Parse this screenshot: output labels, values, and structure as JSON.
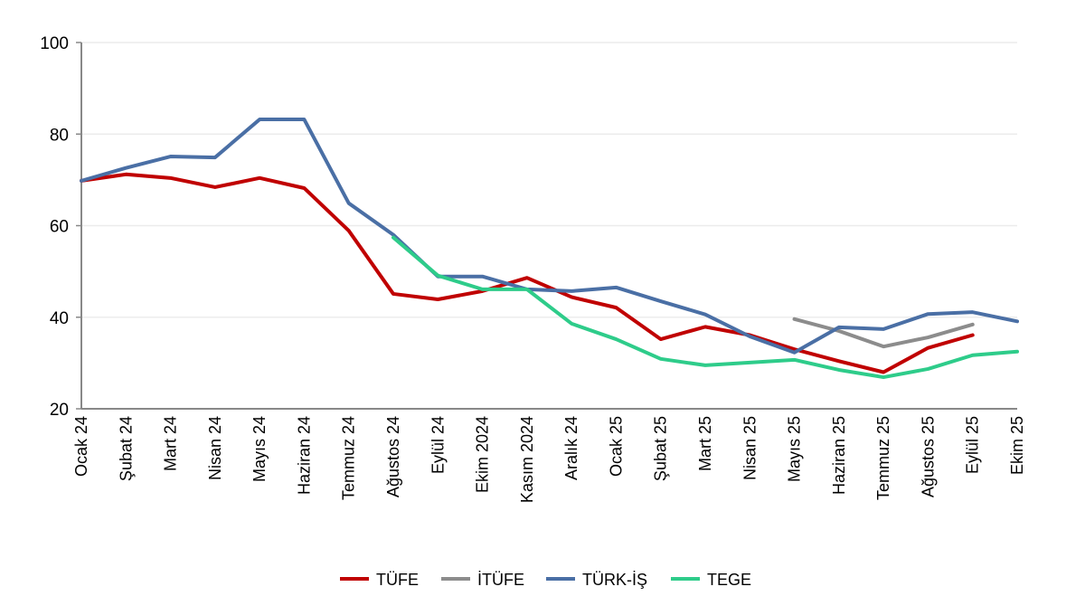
{
  "chart_data": {
    "type": "line",
    "title": "",
    "xlabel": "",
    "ylabel": "",
    "ylim": [
      20,
      100
    ],
    "yticks": [
      20,
      40,
      60,
      80,
      100
    ],
    "grid": true,
    "legend_position": "bottom",
    "categories": [
      "Ocak 24",
      "Şubat 24",
      "Mart 24",
      "Nisan 24",
      "Mayıs 24",
      "Haziran 24",
      "Temmuz 24",
      "Ağustos 24",
      "Eylül 24",
      "Ekim 2024",
      "Kasım 2024",
      "Aralık 24",
      "Ocak 25",
      "Şubat 25",
      "Mart 25",
      "Nisan 25",
      "Mayıs 25",
      "Haziran 25",
      "Temmuz 25",
      "Ağustos 25",
      "Eylül 25",
      "Ekim 25"
    ],
    "series": [
      {
        "name": "TÜFE",
        "color": "#c00000",
        "values": [
          69.8,
          71.2,
          70.4,
          68.4,
          70.4,
          68.2,
          58.9,
          45.1,
          43.9,
          45.7,
          48.6,
          44.4,
          42.1,
          35.2,
          37.9,
          36.1,
          33.0,
          30.4,
          28.0,
          33.3,
          36.1,
          null
        ]
      },
      {
        "name": "İTÜFE",
        "color": "#8c8c8c",
        "values": [
          null,
          null,
          null,
          null,
          null,
          null,
          null,
          null,
          null,
          null,
          null,
          null,
          null,
          null,
          null,
          null,
          39.6,
          37.0,
          33.6,
          35.6,
          38.4,
          null
        ]
      },
      {
        "name": "TÜRK-İŞ",
        "color": "#4a6fa5",
        "values": [
          69.8,
          72.6,
          75.1,
          74.9,
          83.2,
          83.2,
          64.9,
          58.0,
          48.9,
          48.9,
          46.1,
          45.7,
          46.5,
          43.5,
          40.6,
          35.8,
          32.3,
          37.8,
          37.4,
          40.7,
          41.1,
          39.1
        ]
      },
      {
        "name": "TEGE",
        "color": "#2ecc8a",
        "values": [
          null,
          null,
          null,
          null,
          null,
          null,
          null,
          57.4,
          49.1,
          46.1,
          46.1,
          38.6,
          35.2,
          30.9,
          29.5,
          30.1,
          30.7,
          28.5,
          26.9,
          28.7,
          31.7,
          32.5
        ]
      }
    ]
  }
}
